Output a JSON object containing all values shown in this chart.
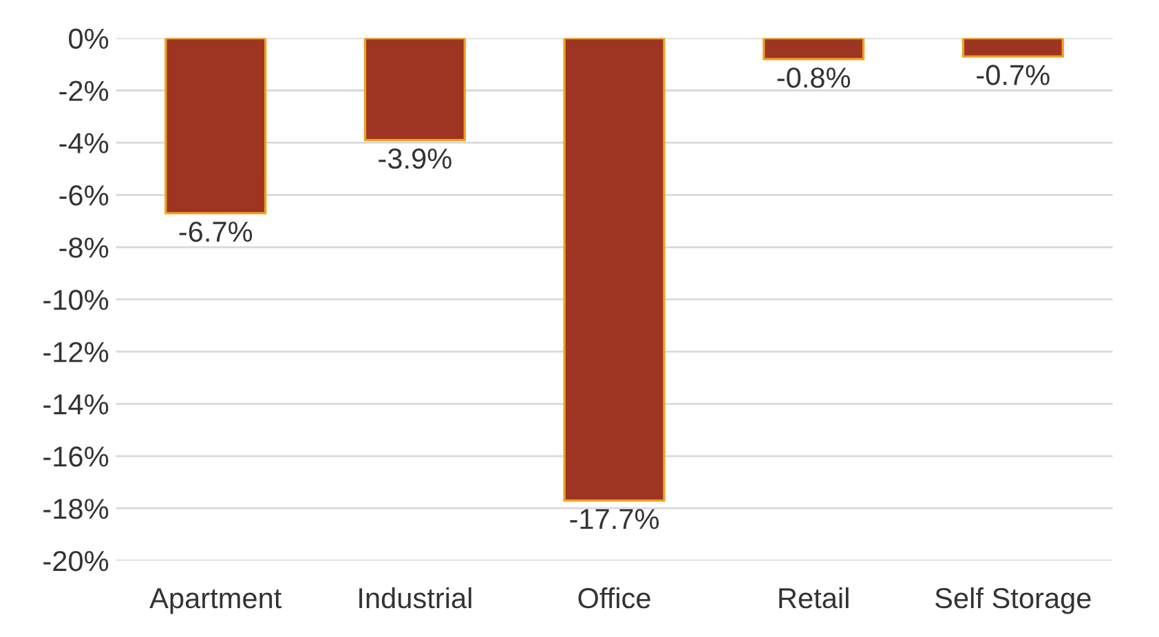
{
  "chart_data": {
    "type": "bar",
    "categories": [
      "Apartment",
      "Industrial",
      "Office",
      "Retail",
      "Self Storage"
    ],
    "values": [
      -6.7,
      -3.9,
      -17.7,
      -0.8,
      -0.7
    ],
    "value_labels": [
      "-6.7%",
      "-3.9%",
      "-17.7%",
      "-0.8%",
      "-0.7%"
    ],
    "color": "#9e3522",
    "ylim": [
      -20,
      0
    ],
    "yticks": [
      {
        "value": 0,
        "label": "0%"
      },
      {
        "value": -2,
        "label": "-2%"
      },
      {
        "value": -4,
        "label": "-4%"
      },
      {
        "value": -6,
        "label": "-6%"
      },
      {
        "value": -8,
        "label": "-8%"
      },
      {
        "value": -10,
        "label": "-10%"
      },
      {
        "value": -12,
        "label": "-12%"
      },
      {
        "value": -14,
        "label": "-14%"
      },
      {
        "value": -16,
        "label": "-16%"
      },
      {
        "value": -18,
        "label": "-18%"
      },
      {
        "value": -20,
        "label": "-20%"
      }
    ],
    "grid": "y"
  }
}
